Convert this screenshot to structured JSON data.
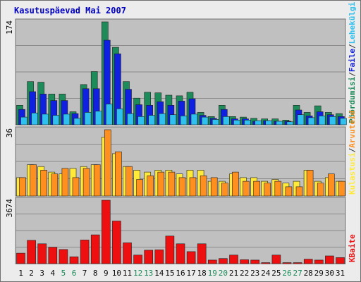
{
  "chart_data": {
    "type": "bar",
    "title": "Kasutuspäevad Mai 2007",
    "categories": [
      "1",
      "2",
      "3",
      "4",
      "5",
      "6",
      "7",
      "8",
      "9",
      "10",
      "11",
      "12",
      "13",
      "14",
      "15",
      "16",
      "17",
      "18",
      "19",
      "20",
      "21",
      "22",
      "23",
      "24",
      "25",
      "26",
      "27",
      "28",
      "29",
      "30",
      "31"
    ],
    "weekend_days": [
      "5",
      "6",
      "12",
      "13",
      "19",
      "20",
      "26",
      "27"
    ],
    "colors": {
      "background": "#c0c0c0",
      "title": "#0000c0",
      "weekday_label": "#0a0a0a",
      "weekend_label": "#1e8c5a",
      "pageviews": "#1e8c5a",
      "files": "#1020e0",
      "hits": "#30c0f0",
      "visits": "#ffea3a",
      "visitors": "#ff9020",
      "kbytes": "#ee1010",
      "grid": "#8a8a8a"
    },
    "panels": [
      {
        "id": "top",
        "ymax_label": "174",
        "ymax": 174,
        "legend": [
          {
            "text": "Pöördumisi",
            "color": "#1e8c5a"
          },
          {
            "text": "/",
            "color": "#333333"
          },
          {
            "text": "Faile",
            "color": "#1020e0"
          },
          {
            "text": "/",
            "color": "#333333"
          },
          {
            "text": "Lehekülgi",
            "color": "#30c0f0"
          }
        ],
        "series": [
          {
            "name": "Pöördumisi",
            "color": "#1e8c5a",
            "values": [
              33,
              73,
              72,
              52,
              52,
              22,
              68,
              90,
              174,
              131,
              73,
              45,
              55,
              54,
              50,
              49,
              55,
              21,
              14,
              33,
              14,
              13,
              11,
              10,
              10,
              8,
              33,
              21,
              32,
              21,
              19
            ]
          },
          {
            "name": "Faile",
            "color": "#1020e0",
            "values": [
              26,
              56,
              52,
              41,
              41,
              19,
              61,
              61,
              143,
              120,
              60,
              34,
              33,
              39,
              33,
              40,
              44,
              16,
              11,
              26,
              10,
              10,
              6,
              7,
              6,
              6,
              25,
              15,
              22,
              17,
              14
            ]
          },
          {
            "name": "Lehekülgi",
            "color": "#30c0f0",
            "values": [
              13,
              20,
              18,
              16,
              18,
              11,
              21,
              23,
              35,
              27,
              19,
              14,
              16,
              19,
              17,
              15,
              18,
              13,
              9,
              14,
              8,
              8,
              7,
              7,
              6,
              5,
              17,
              12,
              15,
              14,
              11
            ]
          }
        ]
      },
      {
        "id": "middle",
        "ymax_label": "36",
        "ymax": 36,
        "legend": [
          {
            "text": "Kulastusi",
            "color": "#ffea3a"
          },
          {
            "text": "/",
            "color": "#333333"
          },
          {
            "text": "Arvuteid",
            "color": "#ff9020"
          }
        ],
        "series": [
          {
            "name": "Kulastusi",
            "color": "#ffea3a",
            "values": [
              10,
              17,
              16,
              13,
              12,
              15,
              16,
              17,
              32,
              23,
              16,
              14,
              13,
              14,
              14,
              12,
              14,
              14,
              8,
              8,
              12,
              10,
              10,
              8,
              9,
              7,
              8,
              14,
              8,
              10,
              8
            ]
          },
          {
            "name": "Arvuteid",
            "color": "#ff9020",
            "values": [
              10,
              17,
              14,
              12,
              15,
              10,
              15,
              17,
              36,
              24,
              16,
              9,
              11,
              13,
              13,
              10,
              10,
              11,
              10,
              7,
              13,
              8,
              8,
              7,
              8,
              5,
              5,
              14,
              7,
              12,
              8
            ]
          }
        ]
      },
      {
        "id": "bottom",
        "ymax_label": "3674",
        "ymax": 3674,
        "legend": [
          {
            "text": "KBaite",
            "color": "#ee1010"
          }
        ],
        "series": [
          {
            "name": "KBaite",
            "color": "#ee1010",
            "values": [
              610,
              1350,
              1150,
              950,
              820,
              400,
              1370,
              1670,
              3674,
              2470,
              1210,
              500,
              780,
              800,
              1600,
              1150,
              700,
              1150,
              210,
              300,
              500,
              230,
              210,
              60,
              500,
              60,
              60,
              260,
              210,
              450,
              350
            ]
          }
        ]
      }
    ]
  }
}
